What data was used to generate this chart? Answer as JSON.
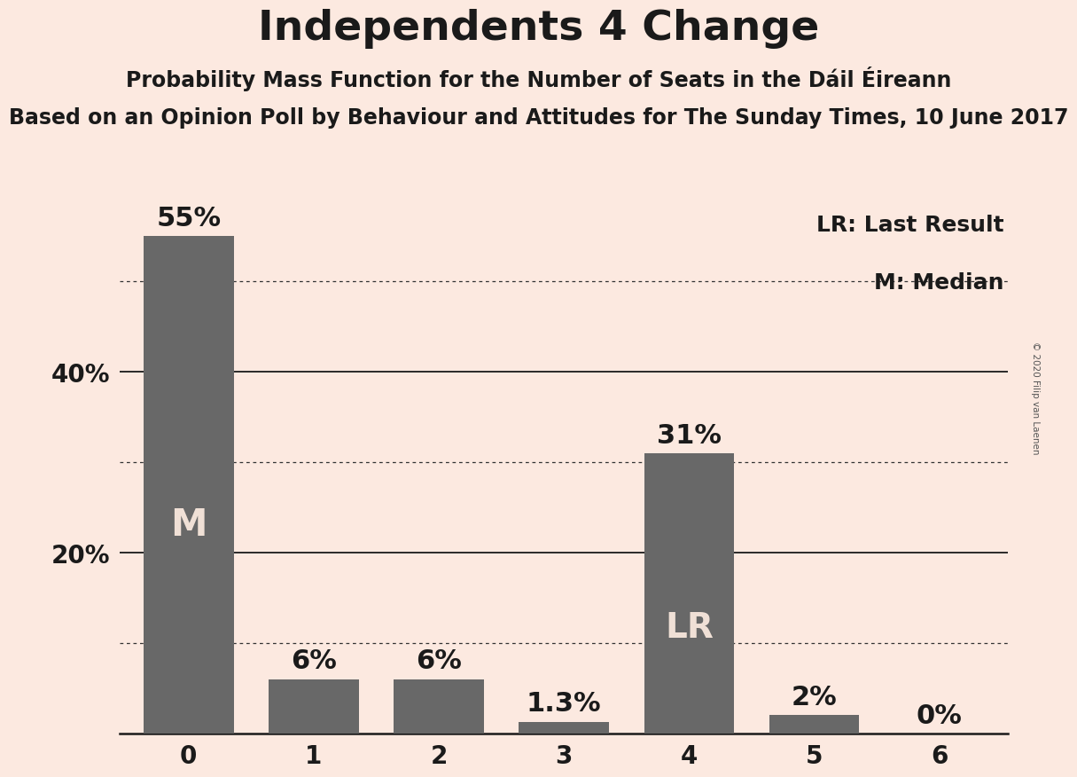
{
  "title": "Independents 4 Change",
  "subtitle": "Probability Mass Function for the Number of Seats in the Dáil Éireann",
  "subtitle2": "Based on an Opinion Poll by Behaviour and Attitudes for The Sunday Times, 10 June 2017",
  "copyright": "© 2020 Filip van Laenen",
  "categories": [
    0,
    1,
    2,
    3,
    4,
    5,
    6
  ],
  "values": [
    55.0,
    6.0,
    6.0,
    1.3,
    31.0,
    2.0,
    0.0
  ],
  "labels": [
    "55%",
    "6%",
    "6%",
    "1.3%",
    "31%",
    "2%",
    "0%"
  ],
  "bar_color": "#686868",
  "background_color": "#fce9e0",
  "text_color": "#1a1a1a",
  "bar_label_color_dark": "#1a1a1a",
  "bar_label_color_white": "#f0e0d6",
  "median_bar": 0,
  "median_label": "M",
  "lr_bar": 4,
  "lr_label": "LR",
  "legend_lr": "LR: Last Result",
  "legend_m": "M: Median",
  "ylim": [
    0,
    58
  ],
  "solid_gridlines": [
    20,
    40
  ],
  "dotted_gridlines": [
    10,
    30,
    50
  ],
  "title_fontsize": 34,
  "subtitle_fontsize": 17,
  "subtitle2_fontsize": 17,
  "tick_fontsize": 20,
  "label_fontsize": 22,
  "inside_label_fontsize": 30,
  "legend_fontsize": 18
}
